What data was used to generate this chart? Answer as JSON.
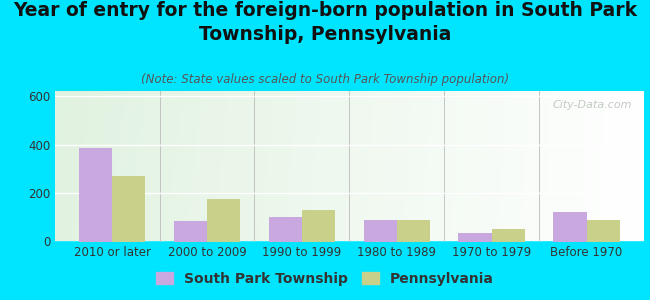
{
  "title": "Year of entry for the foreign-born population in South Park\nTownship, Pennsylvania",
  "subtitle": "(Note: State values scaled to South Park Township population)",
  "categories": [
    "2010 or later",
    "2000 to 2009",
    "1990 to 1999",
    "1980 to 1989",
    "1970 to 1979",
    "Before 1970"
  ],
  "south_park_values": [
    385,
    85,
    100,
    90,
    35,
    120
  ],
  "pennsylvania_values": [
    270,
    175,
    130,
    90,
    50,
    90
  ],
  "south_park_color": "#c9a8e0",
  "pennsylvania_color": "#c8d08a",
  "ylim": [
    0,
    620
  ],
  "yticks": [
    0,
    200,
    400,
    600
  ],
  "background_color": "#00e5ff",
  "watermark": "City-Data.com",
  "title_fontsize": 13.5,
  "subtitle_fontsize": 8.5,
  "tick_fontsize": 8.5,
  "legend_fontsize": 10
}
